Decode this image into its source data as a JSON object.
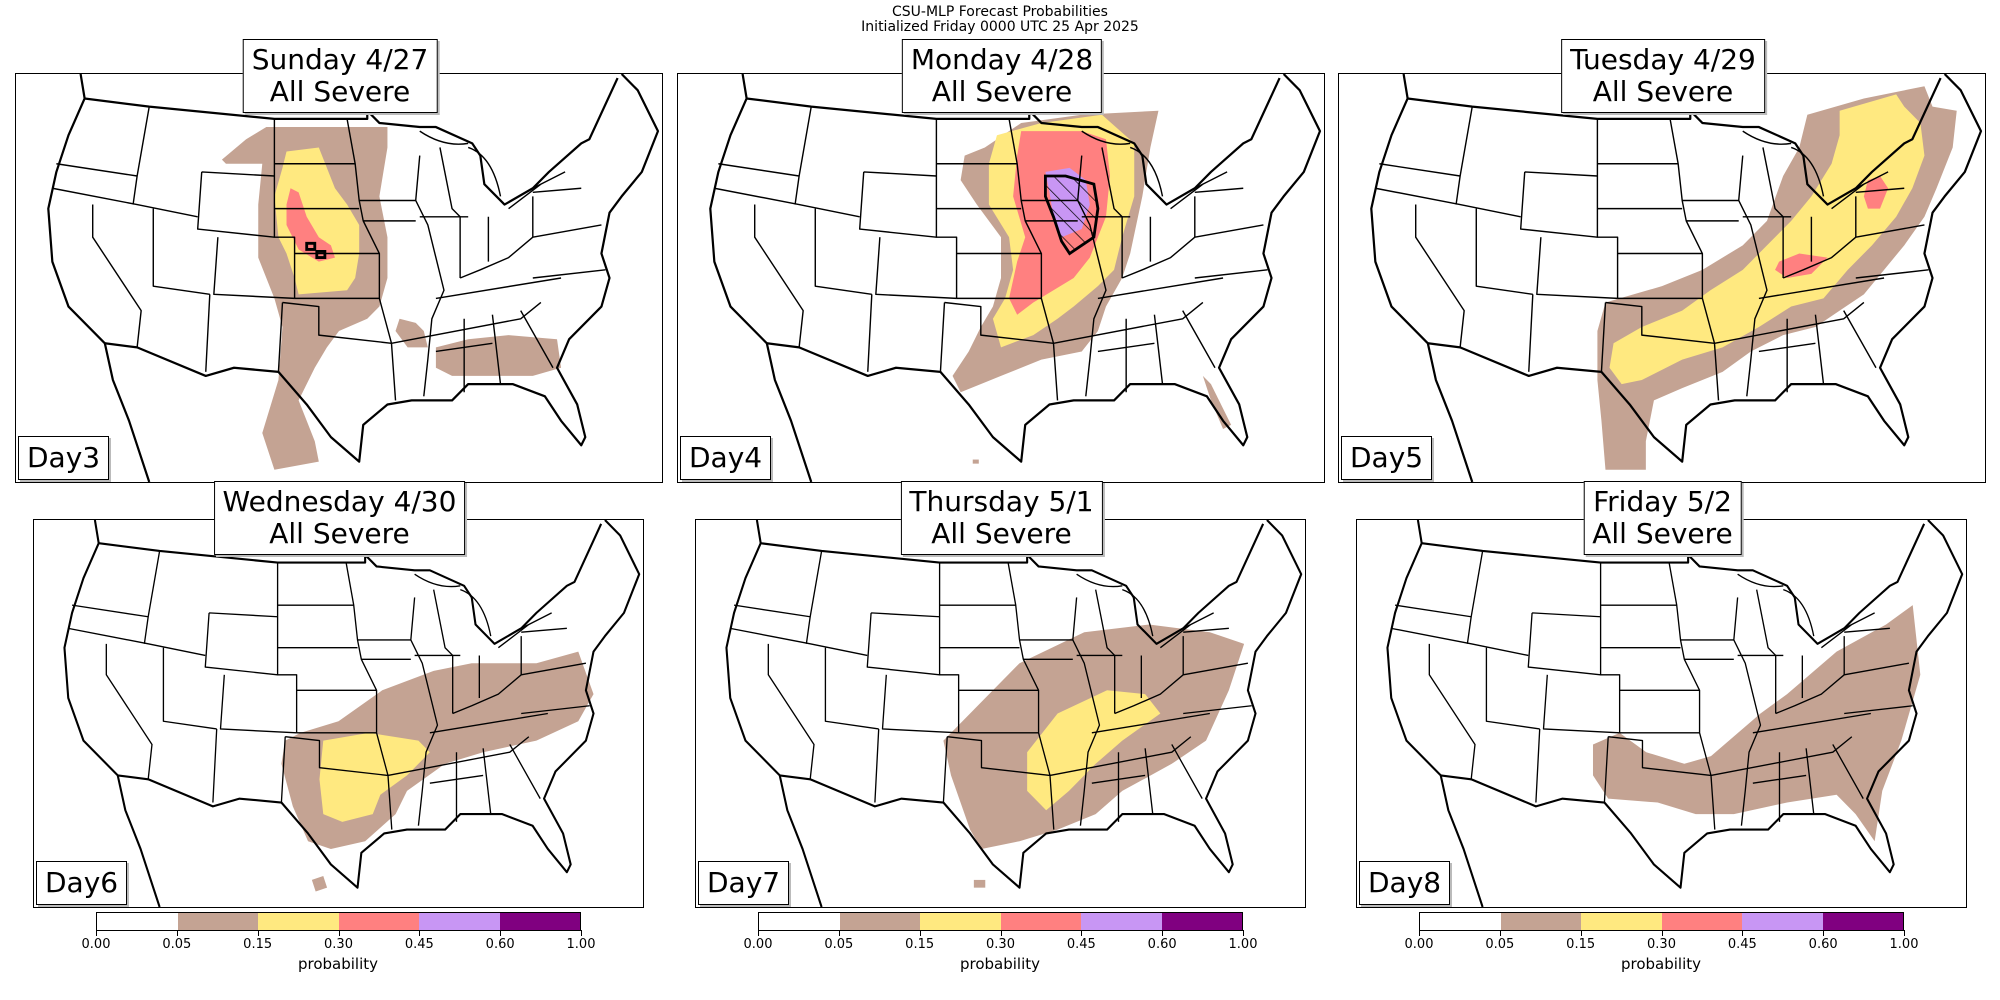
{
  "figure": {
    "title_line1": "CSU-MLP Forecast Probabilities",
    "title_line2": "Initialized Friday 0000 UTC 25 Apr 2025"
  },
  "panels": [
    {
      "title": "Sunday 4/27",
      "subtitle": "All Severe",
      "day": "Day3"
    },
    {
      "title": "Monday 4/28",
      "subtitle": "All Severe",
      "day": "Day4"
    },
    {
      "title": "Tuesday 4/29",
      "subtitle": "All Severe",
      "day": "Day5"
    },
    {
      "title": "Wednesday 4/30",
      "subtitle": "All Severe",
      "day": "Day6"
    },
    {
      "title": "Thursday 5/1",
      "subtitle": "All Severe",
      "day": "Day7"
    },
    {
      "title": "Friday 5/2",
      "subtitle": "All Severe",
      "day": "Day8"
    }
  ],
  "colorbar": {
    "label": "probability",
    "ticks": [
      "0.00",
      "0.05",
      "0.15",
      "0.30",
      "0.45",
      "0.60",
      "1.00"
    ],
    "colors": [
      "#ffffff",
      "#c4a393",
      "#ffe980",
      "#ff8080",
      "#c896f4",
      "#800080"
    ]
  }
}
